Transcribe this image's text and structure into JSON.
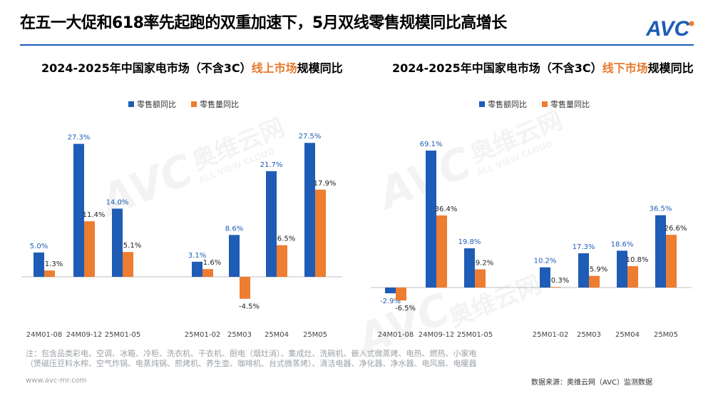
{
  "page": {
    "title": "在五一大促和618率先起跑的双重加速下，5月双线零售规模同比高增长",
    "logo_text": "AVC",
    "watermark": {
      "cn": "奥维云网",
      "en": "ALL VIEW CLOUD",
      "logo": "AVC"
    },
    "note_lines": [
      "注：包含品类彩电、空调、冰箱、冷柜、洗衣机、干衣机、厨电（烟灶消）、集成灶、洗碗机、嵌入式微蒸烤、电热、燃热、小家电",
      "（煲磁压豆料水榨、空气炸锅、电蒸炖锅、煎烤机、养生壶、咖啡机、台式微蒸烤）、清洁电器、净化器、净水器、电风扇、电暖器"
    ],
    "website": "www.avc-mr.com",
    "source": "数据来源：奥维云网（AVC）监测数据"
  },
  "colors": {
    "retail_value": "#1f5cb6",
    "retail_volume": "#ed7d31",
    "accent": "#e8792a",
    "label_blue": "#1f5cb6"
  },
  "chart_data": [
    {
      "type": "bar",
      "title_prefix": "2024-2025年中国家电市场（不含3C）",
      "title_highlight": "线上市场",
      "title_suffix": "规模同比",
      "categories": [
        "24M01-08",
        "24M09-12",
        "25M01-05",
        "",
        "25M01-02",
        "25M03",
        "25M04",
        "25M05"
      ],
      "series": [
        {
          "name": "零售额同比",
          "values": [
            5.0,
            27.3,
            14.0,
            null,
            3.1,
            8.6,
            21.7,
            27.5
          ],
          "labels": [
            "5.0%",
            "27.3%",
            "14.0%",
            "",
            "3.1%",
            "8.6%",
            "21.7%",
            "27.5%"
          ]
        },
        {
          "name": "零售量同比",
          "values": [
            1.3,
            11.4,
            5.1,
            null,
            1.6,
            -4.5,
            6.5,
            17.9
          ],
          "labels": [
            "1.3%",
            "11.4%",
            "5.1%",
            "",
            "1.6%",
            "-4.5%",
            "6.5%",
            "17.9%"
          ]
        }
      ],
      "legend_position": "top-center",
      "ylim": [
        -6,
        29
      ],
      "grid": false
    },
    {
      "type": "bar",
      "title_prefix": "2024-2025年中国家电市场（不含3C）",
      "title_highlight": "线下市场",
      "title_suffix": "规模同比",
      "categories": [
        "24M01-08",
        "24M09-12",
        "25M01-05",
        "",
        "25M01-02",
        "25M03",
        "25M04",
        "25M05"
      ],
      "series": [
        {
          "name": "零售额同比",
          "values": [
            -2.9,
            69.1,
            19.8,
            null,
            10.2,
            17.3,
            18.6,
            36.5
          ],
          "labels": [
            "-2.9%",
            "69.1%",
            "19.8%",
            "",
            "10.2%",
            "17.3%",
            "18.6%",
            "36.5%"
          ]
        },
        {
          "name": "零售量同比",
          "values": [
            -6.5,
            36.4,
            9.2,
            null,
            0.3,
            5.9,
            10.8,
            26.6
          ],
          "labels": [
            "-6.5%",
            "36.4%",
            "9.2%",
            "",
            "0.3%",
            "5.9%",
            "10.8%",
            "26.6%"
          ]
        }
      ],
      "legend_position": "top-center",
      "ylim": [
        -11,
        72
      ],
      "grid": false
    }
  ]
}
